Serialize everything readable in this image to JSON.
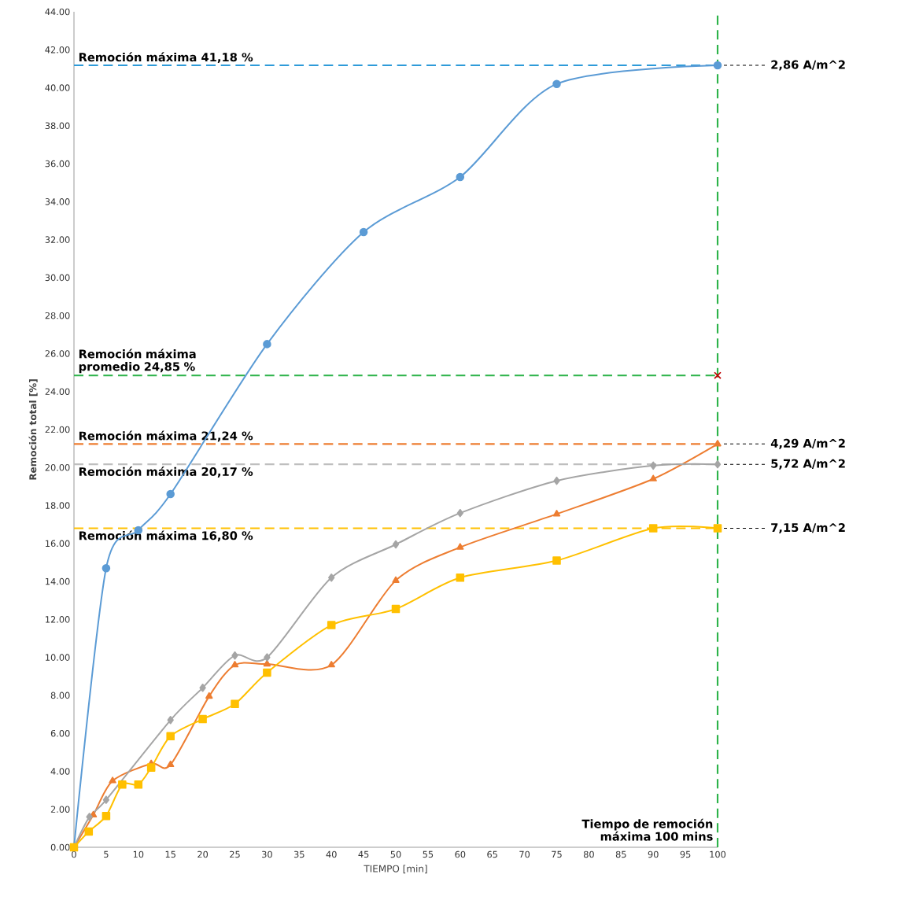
{
  "chart_data": {
    "type": "line",
    "xlabel": "TIEMPO [min]",
    "ylabel": "Remoción total [%]",
    "xlim": [
      0,
      100
    ],
    "ylim": [
      0,
      44
    ],
    "xticks": [
      0,
      5,
      10,
      15,
      20,
      25,
      30,
      35,
      40,
      45,
      50,
      55,
      60,
      65,
      70,
      75,
      80,
      85,
      90,
      95,
      100
    ],
    "yticks": [
      {
        "value": 0,
        "label": "0.00"
      },
      {
        "value": 2,
        "label": "2.00"
      },
      {
        "value": 4,
        "label": "4.00"
      },
      {
        "value": 6,
        "label": "6.00"
      },
      {
        "value": 8,
        "label": "8.00"
      },
      {
        "value": 10,
        "label": "10.00"
      },
      {
        "value": 12,
        "label": "12.00"
      },
      {
        "value": 14,
        "label": "14.00"
      },
      {
        "value": 16,
        "label": "16.00"
      },
      {
        "value": 18,
        "label": "18.00"
      },
      {
        "value": 20,
        "label": "20.00"
      },
      {
        "value": 22,
        "label": "22.00"
      },
      {
        "value": 24,
        "label": "24.00"
      },
      {
        "value": 26,
        "label": "26.00"
      },
      {
        "value": 28,
        "label": "28.00"
      },
      {
        "value": 30,
        "label": "30.00"
      },
      {
        "value": 32,
        "label": "32.00"
      },
      {
        "value": 34,
        "label": "34.00"
      },
      {
        "value": 36,
        "label": "36.00"
      },
      {
        "value": 38,
        "label": "38.00"
      },
      {
        "value": 40,
        "label": "40.00"
      },
      {
        "value": 42,
        "label": "42.00"
      },
      {
        "value": 44,
        "label": "44.00"
      }
    ],
    "series": [
      {
        "name": "2,86 A/m^2",
        "color": "#5b9bd5",
        "marker": "circle",
        "x": [
          0,
          5,
          10,
          15,
          30,
          45,
          60,
          75,
          100
        ],
        "values": [
          0,
          14.7,
          16.7,
          18.6,
          26.5,
          32.4,
          35.3,
          40.2,
          41.18
        ]
      },
      {
        "name": "4,29 A/m^2",
        "color": "#ed7d31",
        "marker": "triangle",
        "x": [
          0,
          3,
          6,
          12,
          15,
          21,
          25,
          30,
          40,
          50,
          60,
          75,
          90,
          100
        ],
        "values": [
          0,
          1.7,
          3.5,
          4.4,
          4.35,
          7.95,
          9.6,
          9.65,
          9.6,
          14.05,
          15.8,
          17.55,
          19.4,
          21.24
        ]
      },
      {
        "name": "5,72 A/m^2",
        "color": "#a5a5a5",
        "marker": "diamond",
        "x": [
          0,
          2.4,
          5,
          15,
          20,
          25,
          30,
          40,
          50,
          60,
          75,
          90,
          100
        ],
        "values": [
          0,
          1.6,
          2.5,
          6.7,
          8.4,
          10.1,
          10.0,
          14.2,
          15.95,
          17.6,
          19.3,
          20.1,
          20.17
        ]
      },
      {
        "name": "7,15 A/m^2",
        "color": "#ffc000",
        "marker": "square",
        "x": [
          0,
          2.3,
          5,
          7.5,
          10,
          12,
          15,
          20,
          25,
          30,
          40,
          50,
          60,
          75,
          90,
          100
        ],
        "values": [
          0,
          0.83,
          1.65,
          3.3,
          3.3,
          4.2,
          5.85,
          6.75,
          7.55,
          9.2,
          11.7,
          12.55,
          14.2,
          15.1,
          16.8,
          16.8
        ]
      },
      {
        "type": "scatter",
        "color": "#c00000",
        "marker": "cross",
        "x": [
          100
        ],
        "values": [
          24.85
        ]
      }
    ],
    "ref_lines": [
      {
        "axis": "y",
        "value": 41.18,
        "label": "Remoción máxima 41,18 %",
        "color": "#2e9bd9",
        "line_style": "dashed"
      },
      {
        "axis": "y",
        "value": 24.85,
        "label": "Remoción máxima promedio 24,85 %",
        "color": "#2db34a",
        "line_style": "dashed"
      },
      {
        "axis": "y",
        "value": 21.24,
        "label": "Remoción máxima 21,24 %",
        "color": "#ed7d31",
        "line_style": "dashed"
      },
      {
        "axis": "y",
        "value": 20.17,
        "label": "Remoción máxima 20,17 %",
        "color": "#bfbfbf",
        "line_style": "dashed"
      },
      {
        "axis": "y",
        "value": 16.8,
        "label": "Remoción máxima 16,80 %",
        "color": "#ffc000",
        "line_style": "dashed"
      },
      {
        "axis": "x",
        "value": 100,
        "label": "Tiempo de remoción máxima 100 mins",
        "color": "#2db34a",
        "line_style": "dashed"
      }
    ]
  }
}
